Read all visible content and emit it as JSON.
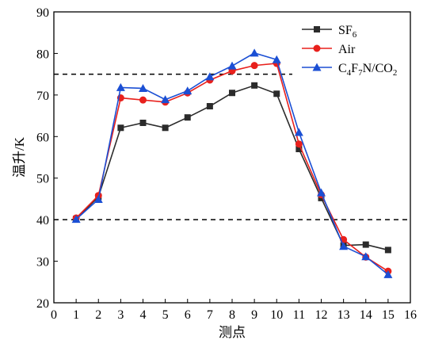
{
  "chart_data": {
    "type": "line",
    "xlabel": "测点",
    "ylabel": "温升/K",
    "xlim": [
      0,
      16
    ],
    "ylim": [
      20,
      90
    ],
    "xticks": [
      0,
      1,
      2,
      3,
      4,
      5,
      6,
      7,
      8,
      9,
      10,
      11,
      12,
      13,
      14,
      15,
      16
    ],
    "yticks": [
      20,
      30,
      40,
      50,
      60,
      70,
      80,
      90
    ],
    "x": [
      1,
      2,
      3,
      4,
      5,
      6,
      7,
      8,
      9,
      10,
      11,
      12,
      13,
      14,
      15
    ],
    "reference_lines": [
      {
        "y": 75,
        "x_range": [
          0,
          10.7
        ],
        "style": "dashed"
      },
      {
        "y": 40,
        "x_range": [
          0,
          16
        ],
        "style": "dashed"
      }
    ],
    "legend_position": "top-right",
    "grid": false,
    "series": [
      {
        "name": "SF6",
        "name_main": "SF",
        "name_sub": "6",
        "color": "#2b2b2b",
        "marker": "square",
        "values": [
          40.2,
          45.5,
          62.1,
          63.3,
          62.1,
          64.6,
          67.3,
          70.5,
          72.3,
          70.3,
          57.0,
          45.2,
          33.8,
          34.0,
          32.7
        ]
      },
      {
        "name": "Air",
        "color": "#e8201c",
        "marker": "circle",
        "values": [
          40.4,
          45.8,
          69.3,
          68.8,
          68.3,
          70.5,
          73.6,
          75.8,
          77.1,
          77.6,
          58.2,
          46.0,
          35.2,
          31.0,
          27.6
        ]
      },
      {
        "name": "C4F7N/CO2",
        "color": "#1b4fd4",
        "marker": "triangle",
        "values": [
          40.1,
          44.9,
          71.8,
          71.6,
          68.9,
          71.0,
          74.4,
          77.0,
          80.1,
          78.5,
          61.0,
          46.5,
          33.6,
          31.1,
          26.8
        ]
      }
    ]
  }
}
